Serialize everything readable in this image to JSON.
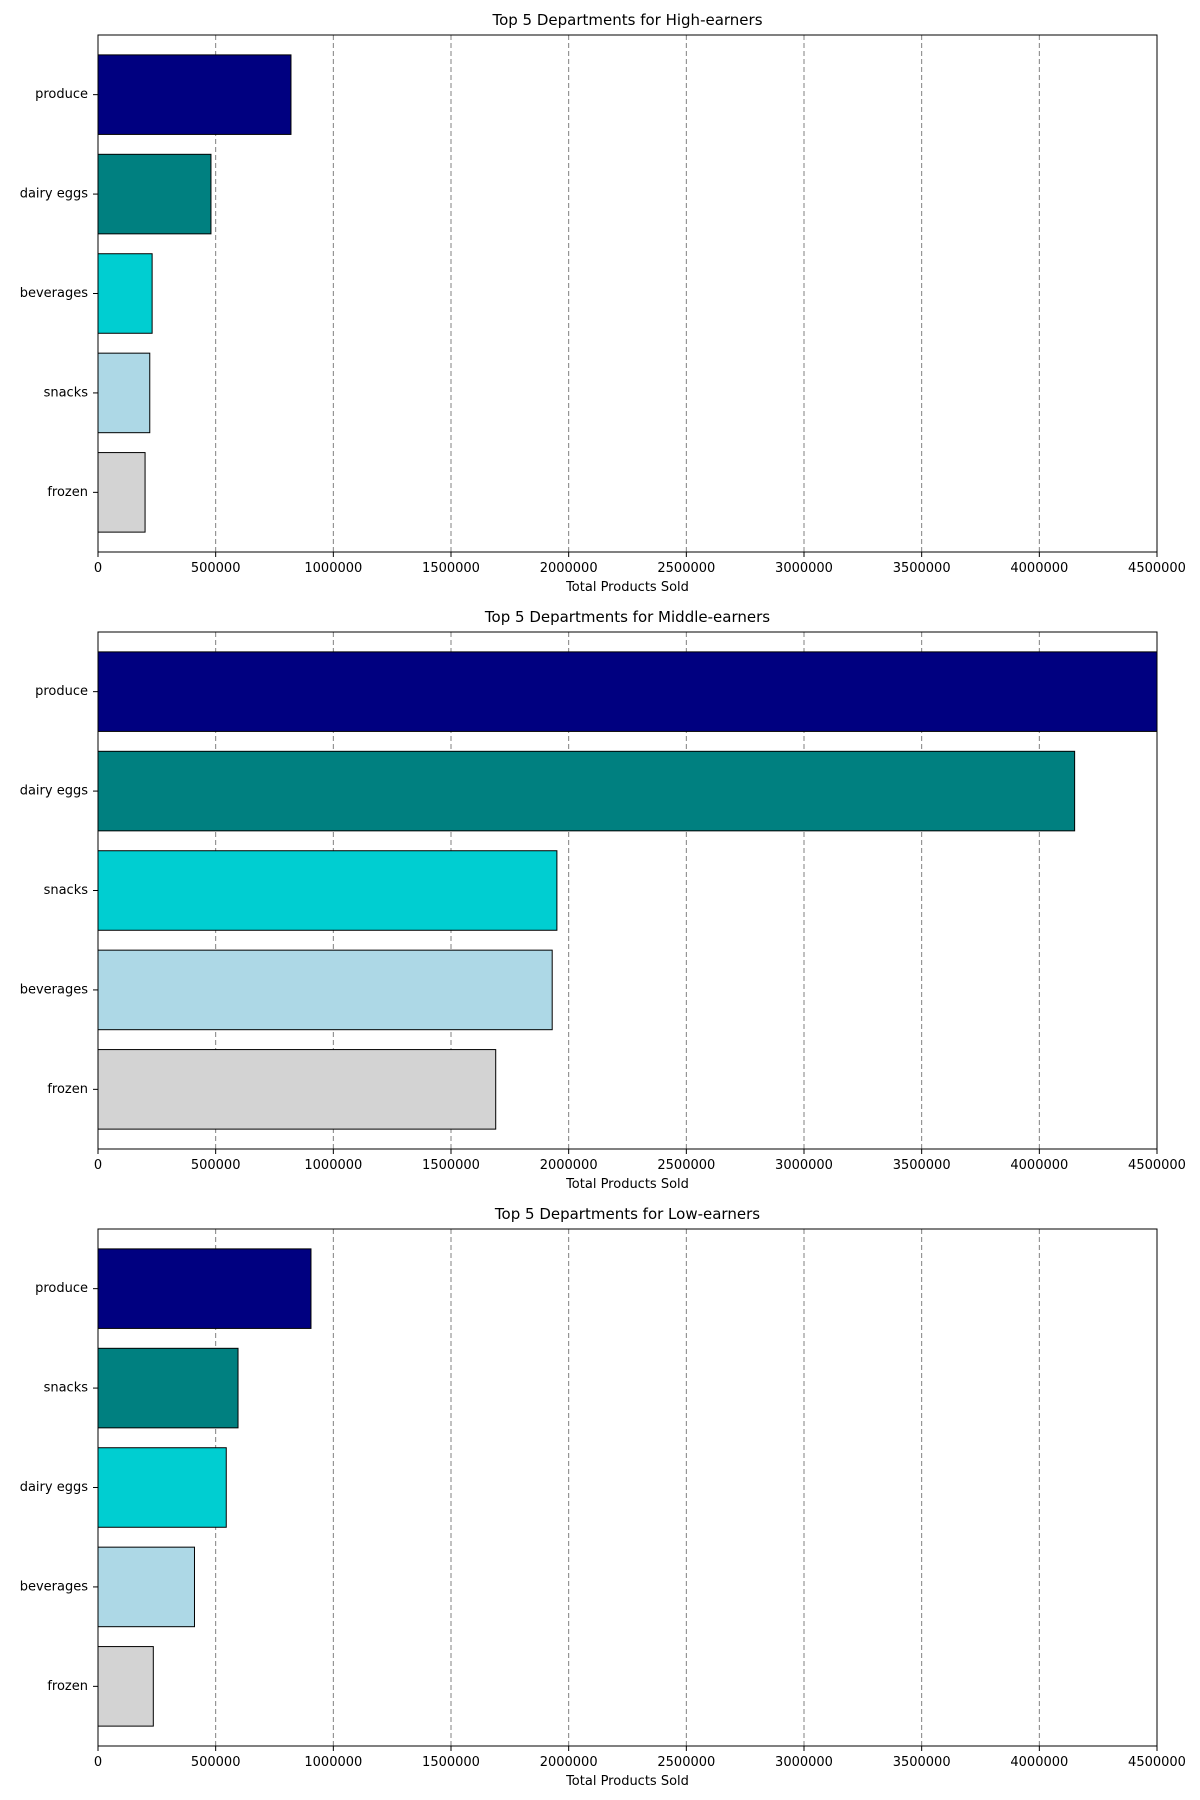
{
  "chart_data": [
    {
      "type": "bar",
      "orientation": "horizontal",
      "title": "Top 5 Departments for High-earners",
      "xlabel": "Total Products Sold",
      "ylabel": "",
      "xlim": [
        0,
        4500000
      ],
      "xticks": [
        "0",
        "500000",
        "1000000",
        "1500000",
        "2000000",
        "2500000",
        "3000000",
        "3500000",
        "4000000",
        "4500000"
      ],
      "grid": "x-dashed",
      "categories": [
        "produce",
        "dairy eggs",
        "beverages",
        "snacks",
        "frozen"
      ],
      "values": [
        820000,
        480000,
        230000,
        220000,
        200000
      ],
      "colors": [
        "#000080",
        "#008080",
        "#00ced1",
        "#add8e6",
        "#d3d3d3"
      ]
    },
    {
      "type": "bar",
      "orientation": "horizontal",
      "title": "Top 5 Departments for Middle-earners",
      "xlabel": "Total Products Sold",
      "ylabel": "",
      "xlim": [
        0,
        4500000
      ],
      "xticks": [
        "0",
        "500000",
        "1000000",
        "1500000",
        "2000000",
        "2500000",
        "3000000",
        "3500000",
        "4000000",
        "4500000"
      ],
      "grid": "x-dashed",
      "categories": [
        "produce",
        "dairy eggs",
        "snacks",
        "beverages",
        "frozen"
      ],
      "values": [
        4500000,
        4150000,
        1950000,
        1930000,
        1690000
      ],
      "colors": [
        "#000080",
        "#008080",
        "#00ced1",
        "#add8e6",
        "#d3d3d3"
      ]
    },
    {
      "type": "bar",
      "orientation": "horizontal",
      "title": "Top 5 Departments for Low-earners",
      "xlabel": "Total Products Sold",
      "ylabel": "",
      "xlim": [
        0,
        4500000
      ],
      "xticks": [
        "0",
        "500000",
        "1000000",
        "1500000",
        "2000000",
        "2500000",
        "3000000",
        "3500000",
        "4000000",
        "4500000"
      ],
      "grid": "x-dashed",
      "categories": [
        "produce",
        "snacks",
        "dairy eggs",
        "beverages",
        "frozen"
      ],
      "values": [
        905000,
        595000,
        545000,
        410000,
        235000
      ],
      "colors": [
        "#000080",
        "#008080",
        "#00ced1",
        "#add8e6",
        "#d3d3d3"
      ]
    }
  ]
}
